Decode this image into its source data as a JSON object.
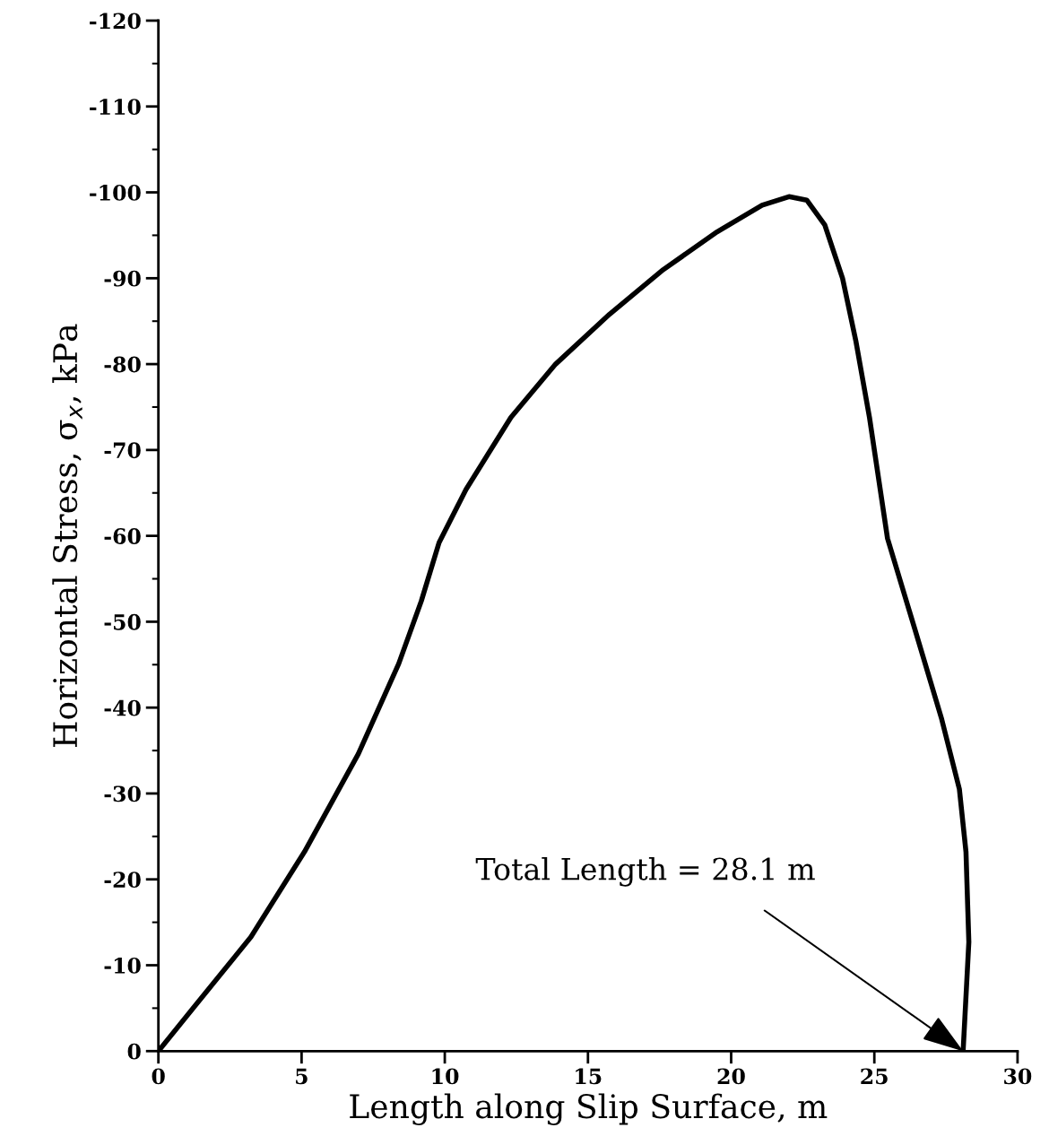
{
  "chart_data": {
    "type": "line",
    "xlabel": "Length along Slip Surface, m",
    "ylabel": "Horizontal Stress, σ$_{x}$, kPa",
    "series": [
      {
        "color": "#000000",
        "x": [
          0,
          1.19,
          3.23,
          5.1,
          6.98,
          8.39,
          9.18,
          9.8,
          10.74,
          12.31,
          13.87,
          15.75,
          17.63,
          19.51,
          21.08,
          22.02,
          22.64,
          23.27,
          23.89,
          24.36,
          24.83,
          25.46,
          26.4,
          27.34,
          27.97,
          28.2,
          28.3,
          28.1
        ],
        "values": [
          0,
          -4.9,
          -13.3,
          -23.2,
          -34.6,
          -45.1,
          -52.4,
          -59.2,
          -65.4,
          -73.8,
          -80.0,
          -85.8,
          -91.0,
          -95.4,
          -98.5,
          -99.5,
          -99.1,
          -96.2,
          -90.0,
          -82.6,
          -73.8,
          -59.7,
          -49.3,
          -38.8,
          -30.5,
          -23.2,
          -12.7,
          0
        ]
      }
    ],
    "xlim": [
      0,
      30
    ],
    "xticks": [
      0,
      5,
      10,
      15,
      20,
      25,
      30
    ],
    "ylim": [
      0,
      -120
    ],
    "yticks": [
      0,
      -10,
      -20,
      -30,
      -40,
      -50,
      -60,
      -70,
      -80,
      -90,
      -100,
      -110,
      -120
    ],
    "grid": false,
    "legend": false,
    "marker": "none",
    "line_style": "solid",
    "annotations": [
      {
        "text": "Total Length = 28.1 m",
        "x": 28.1,
        "y": 0
      }
    ]
  }
}
